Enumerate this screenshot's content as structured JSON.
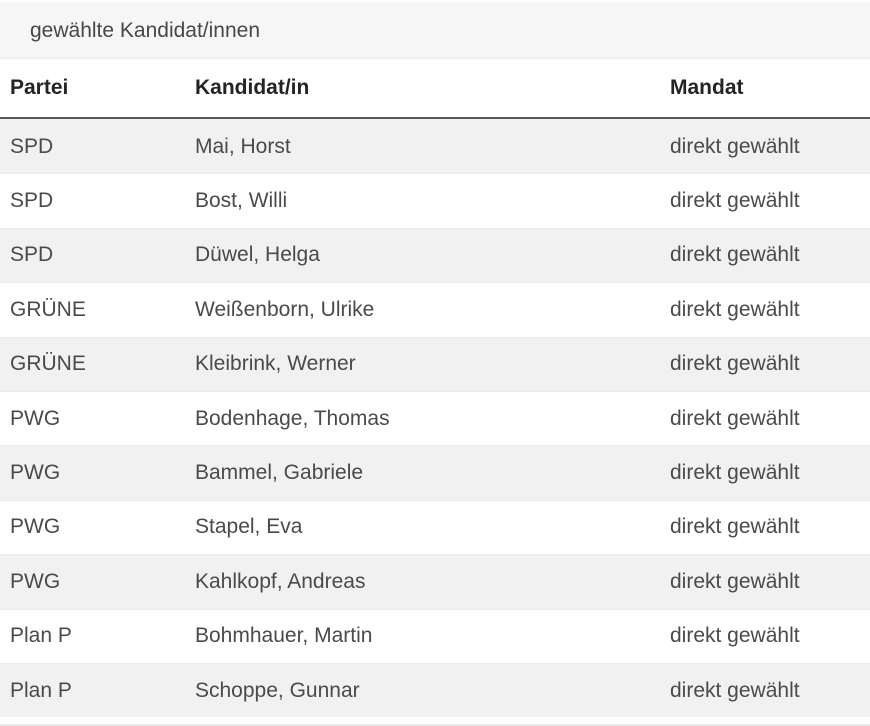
{
  "section": {
    "title": "gewählte Kandidat/innen"
  },
  "table": {
    "columns": [
      {
        "key": "partei",
        "label": "Partei"
      },
      {
        "key": "kandidat",
        "label": "Kandidat/in"
      },
      {
        "key": "mandat",
        "label": "Mandat"
      }
    ],
    "rows": [
      {
        "partei": "SPD",
        "kandidat": "Mai, Horst",
        "mandat": "direkt gewählt"
      },
      {
        "partei": "SPD",
        "kandidat": "Bost, Willi",
        "mandat": "direkt gewählt"
      },
      {
        "partei": "SPD",
        "kandidat": "Düwel, Helga",
        "mandat": "direkt gewählt"
      },
      {
        "partei": "GRÜNE",
        "kandidat": "Weißenborn, Ulrike",
        "mandat": "direkt gewählt"
      },
      {
        "partei": "GRÜNE",
        "kandidat": "Kleibrink, Werner",
        "mandat": "direkt gewählt"
      },
      {
        "partei": "PWG",
        "kandidat": "Bodenhage, Thomas",
        "mandat": "direkt gewählt"
      },
      {
        "partei": "PWG",
        "kandidat": "Bammel, Gabriele",
        "mandat": "direkt gewählt"
      },
      {
        "partei": "PWG",
        "kandidat": "Stapel, Eva",
        "mandat": "direkt gewählt"
      },
      {
        "partei": "PWG",
        "kandidat": "Kahlkopf, Andreas",
        "mandat": "direkt gewählt"
      },
      {
        "partei": "Plan P",
        "kandidat": "Bohmhauer, Martin",
        "mandat": "direkt gewählt"
      },
      {
        "partei": "Plan P",
        "kandidat": "Schoppe, Gunnar",
        "mandat": "direkt gewählt"
      }
    ]
  },
  "colors": {
    "title_bar_bg": "#f6f6f6",
    "row_alt_bg": "#f1f1f1",
    "header_rule": "#595959",
    "text": "#4a4a4a",
    "header_text": "#242424"
  }
}
